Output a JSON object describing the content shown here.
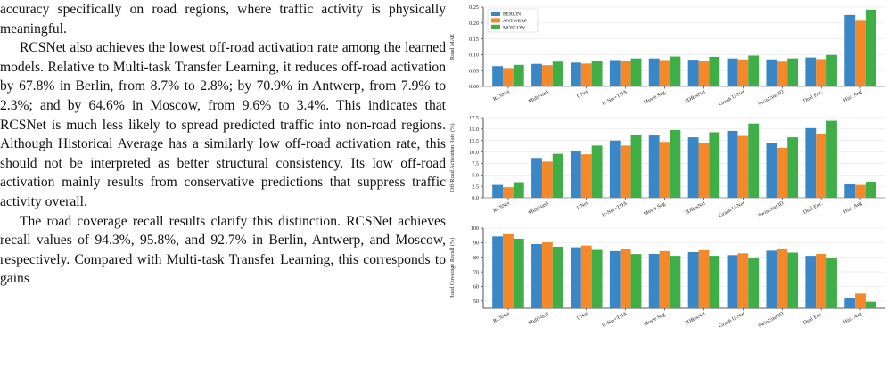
{
  "text": {
    "p0": "accuracy specifically on road regions, where traffic activity is physically meaningful.",
    "p1": "RCSNet also achieves the lowest off-road activation rate among the learned models. Relative to Multi-task Transfer Learning, it reduces off-road activation by 67.8% in Berlin, from 8.7% to 2.8%; by 70.9% in Antwerp, from 7.9% to 2.3%; and by 64.6% in Moscow, from 9.6% to 3.4%. This indicates that RCSNet is much less likely to spread predicted traffic into non-road regions. Although Historical Average has a similarly low off-road activation rate, this should not be interpreted as better structural consistency. Its low off-road activation mainly results from conservative predictions that suppress traffic activity overall.",
    "p2": "The road coverage recall results clarify this distinction. RCSNet achieves recall values of 94.3%, 95.8%, and 92.7% in Berlin, Antwerp, and Moscow, respectively. Compared with Multi-task Transfer Learning, this corresponds to gains"
  },
  "colors": {
    "berlin": "#3a87c8",
    "antwerp": "#f5892a",
    "moscow": "#3fae47"
  },
  "chart_data": [
    {
      "type": "bar",
      "ylabel": "Road MAE",
      "ylim": [
        0,
        0.25
      ],
      "yticks": [
        "0.00",
        "0.05",
        "0.10",
        "0.15",
        "0.20",
        "0.25"
      ],
      "legend": "top-left",
      "categories": [
        "RCSNet",
        "Multi-task",
        "UNet",
        "U-Net+TDA",
        "Movie Seg.",
        "3DResNet",
        "Graph U-Net",
        "SwinUnet3D",
        "Dual Enc.",
        "Hist. Avg"
      ],
      "series": [
        {
          "name": "BERLIN",
          "values": [
            0.064,
            0.071,
            0.075,
            0.083,
            0.088,
            0.084,
            0.088,
            0.085,
            0.091,
            0.225
          ]
        },
        {
          "name": "ANTWERP",
          "values": [
            0.058,
            0.067,
            0.072,
            0.08,
            0.083,
            0.08,
            0.085,
            0.078,
            0.086,
            0.207
          ]
        },
        {
          "name": "MOSCOW",
          "values": [
            0.068,
            0.078,
            0.081,
            0.088,
            0.094,
            0.093,
            0.097,
            0.088,
            0.099,
            0.242
          ]
        }
      ]
    },
    {
      "type": "bar",
      "ylabel": "Off-Road Activation Rate (%)",
      "ylim": [
        0,
        17.5
      ],
      "yticks": [
        "0.0",
        "2.5",
        "5.0",
        "7.5",
        "10.0",
        "12.5",
        "15.0",
        "17.5"
      ],
      "categories": [
        "RCSNet",
        "Multi-task",
        "UNet",
        "U-Net+TDA",
        "Movie Seg.",
        "3DResNet",
        "Graph U-Net",
        "SwinUnet3D",
        "Dual Enc.",
        "Hist. Avg"
      ],
      "series": [
        {
          "name": "BERLIN",
          "values": [
            2.8,
            8.7,
            10.3,
            12.5,
            13.6,
            13.2,
            14.6,
            12.0,
            15.2,
            3.0
          ]
        },
        {
          "name": "ANTWERP",
          "values": [
            2.3,
            7.9,
            9.5,
            11.4,
            12.2,
            11.9,
            13.5,
            10.9,
            14.0,
            2.8
          ]
        },
        {
          "name": "MOSCOW",
          "values": [
            3.4,
            9.6,
            11.4,
            13.8,
            14.8,
            14.3,
            16.2,
            13.2,
            16.8,
            3.5
          ]
        }
      ]
    },
    {
      "type": "bar",
      "ylabel": "Road Coverage Recall (%)",
      "ylim": [
        45,
        100
      ],
      "yticks": [
        "50",
        "60",
        "70",
        "80",
        "90",
        "100"
      ],
      "categories": [
        "RCSNet",
        "Multi-task",
        "UNet",
        "U-Net+TDA",
        "Movie Seg.",
        "3DResNet",
        "Graph U-Net",
        "SwinUnet3D",
        "Dual Enc.",
        "Hist. Avg"
      ],
      "series": [
        {
          "name": "BERLIN",
          "values": [
            94.3,
            89.0,
            86.8,
            84.2,
            82.3,
            83.5,
            81.5,
            84.5,
            81.0,
            52.0
          ]
        },
        {
          "name": "ANTWERP",
          "values": [
            95.8,
            90.2,
            88.0,
            85.5,
            84.2,
            84.8,
            82.7,
            86.0,
            82.3,
            55.2
          ]
        },
        {
          "name": "MOSCOW",
          "values": [
            92.7,
            87.2,
            85.0,
            82.2,
            81.0,
            81.0,
            79.5,
            83.2,
            79.2,
            49.5
          ]
        }
      ]
    }
  ]
}
